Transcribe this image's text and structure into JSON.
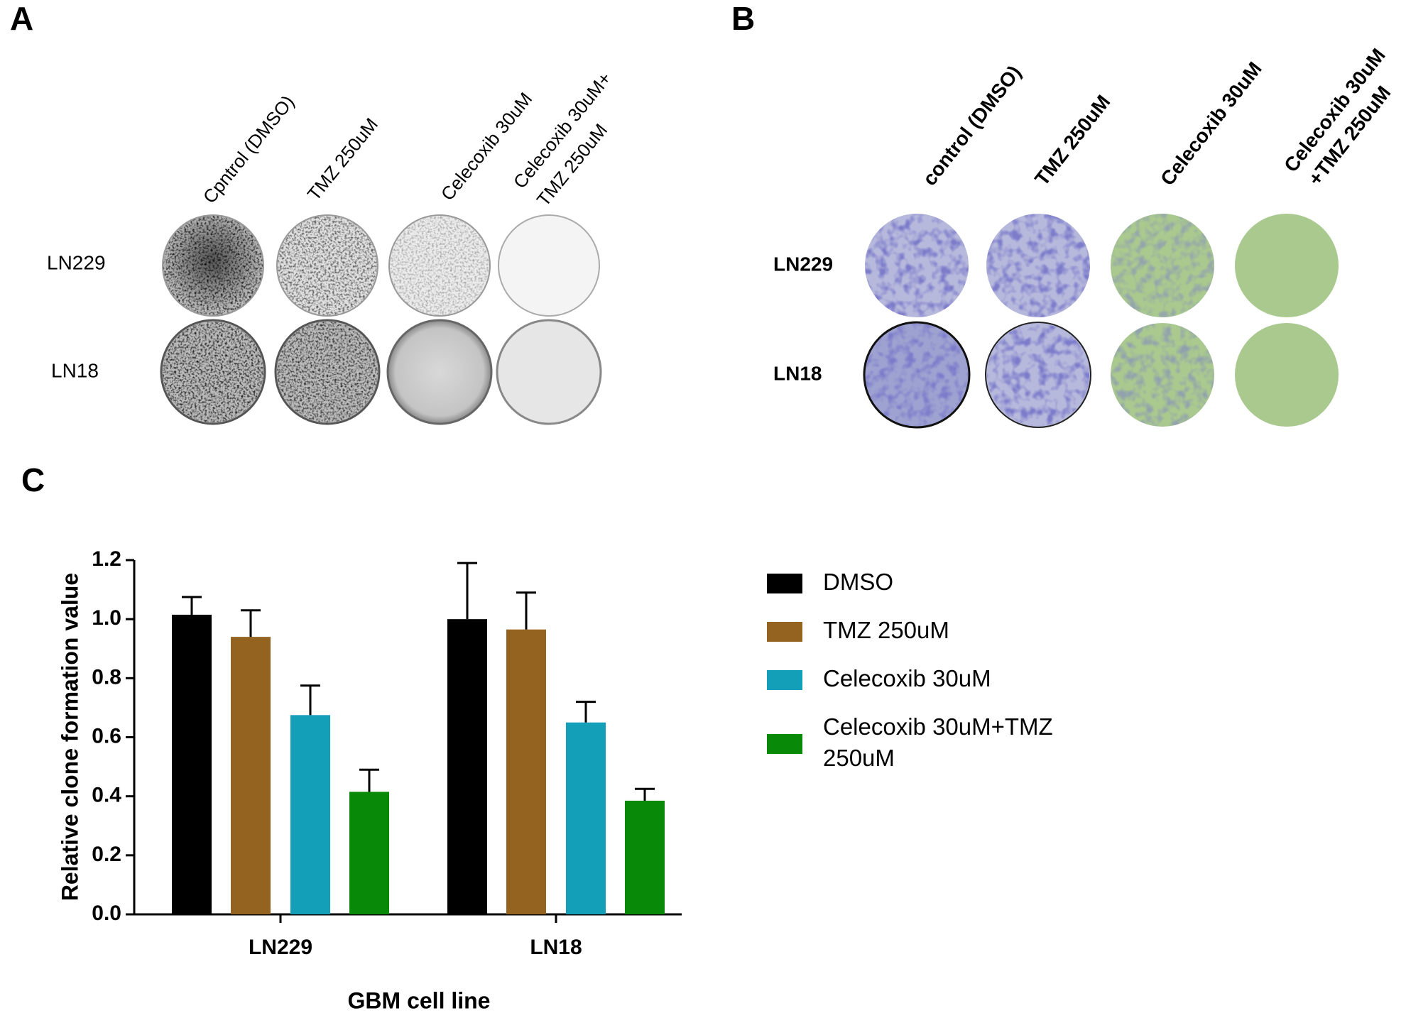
{
  "panel_a": {
    "label": "A",
    "columns": [
      [
        "Cpntrol (DMSO)"
      ],
      [
        "TMZ 250uM"
      ],
      [
        "Celecoxib 30uM"
      ],
      [
        "Celecoxib 30uM+",
        "TMZ 250uM"
      ]
    ],
    "rows": [
      "LN229",
      "LN18"
    ]
  },
  "panel_b": {
    "label": "B",
    "columns": [
      [
        "control (DMSO)"
      ],
      [
        "TMZ 250uM"
      ],
      [
        "Celecoxib 30uM"
      ],
      [
        "Celecoxib 30uM",
        "+TMZ 250uM"
      ]
    ],
    "rows": [
      "LN229",
      "LN18"
    ]
  },
  "chart_data": {
    "label": "C",
    "type": "bar",
    "xlabel": "GBM cell line",
    "ylabel": "Relative clone formation value",
    "categories": [
      "LN229",
      "LN18"
    ],
    "series": [
      {
        "name": "DMSO",
        "color": "#000000",
        "values": [
          1.015,
          1.0
        ],
        "errors": [
          0.06,
          0.19
        ]
      },
      {
        "name": "TMZ 250uM",
        "color": "#946320",
        "values": [
          0.94,
          0.965
        ],
        "errors": [
          0.09,
          0.125
        ]
      },
      {
        "name": "Celecoxib 30uM",
        "color": "#139fb8",
        "values": [
          0.675,
          0.65
        ],
        "errors": [
          0.1,
          0.07
        ]
      },
      {
        "name": "Celecoxib 30uM+TMZ 250uM",
        "color": "#088a08",
        "values": [
          0.415,
          0.385
        ],
        "errors": [
          0.075,
          0.04
        ]
      }
    ],
    "ylim": [
      0,
      1.2
    ],
    "yticks": [
      {
        "value": 0,
        "label": "0.0"
      },
      {
        "value": 0.2,
        "label": "0.2"
      },
      {
        "value": 0.4,
        "label": "0.4"
      },
      {
        "value": 0.6,
        "label": "0.6"
      },
      {
        "value": 0.8,
        "label": "0.8"
      },
      {
        "value": 1.0,
        "label": "1.0"
      },
      {
        "value": 1.2,
        "label": "1.2"
      }
    ]
  }
}
